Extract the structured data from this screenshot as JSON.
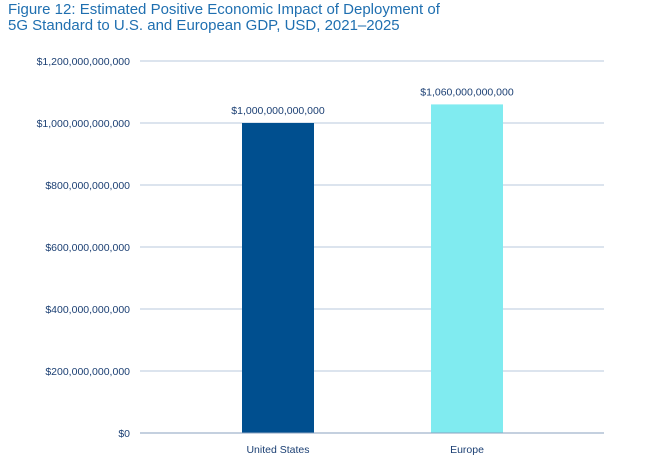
{
  "chart_data": {
    "type": "bar",
    "title_lines": [
      "Figure 12: Estimated Positive Economic Impact of Deployment of",
      "5G Standard to U.S. and European GDP, USD, 2021–2025"
    ],
    "categories": [
      "United States",
      "Europe"
    ],
    "values": [
      1000000000000,
      1060000000000
    ],
    "data_labels": [
      "$1,000,000,000,000",
      "$1,060,000,000,000"
    ],
    "bar_colors": [
      "#004f8f",
      "#80ebf0"
    ],
    "ylim": [
      0,
      1200000000000
    ],
    "yticks": [
      {
        "value": 0,
        "label": "$0"
      },
      {
        "value": 200000000000,
        "label": "$200,000,000,000"
      },
      {
        "value": 400000000000,
        "label": "$400,000,000,000"
      },
      {
        "value": 600000000000,
        "label": "$600,000,000,000"
      },
      {
        "value": 800000000000,
        "label": "$800,000,000,000"
      },
      {
        "value": 1000000000000,
        "label": "$1,000,000,000,000"
      },
      {
        "value": 1200000000000,
        "label": "$1,200,000,000,000"
      }
    ],
    "grid": true,
    "xlabel": "",
    "ylabel": ""
  }
}
